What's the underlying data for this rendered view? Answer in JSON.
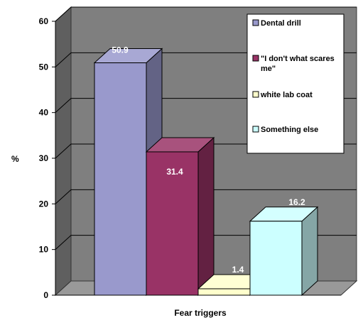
{
  "chart_data": {
    "type": "bar",
    "categories": [
      "Dental drill",
      "\"I don't what scares me\"",
      "white lab coat",
      "Something else"
    ],
    "values": [
      50.9,
      31.4,
      1.4,
      16.2
    ],
    "data_labels": [
      "50.9",
      "31.4",
      "1.4",
      "16.2"
    ],
    "colors": [
      "#9999cc",
      "#993366",
      "#ffffcc",
      "#ccffff"
    ],
    "title": "",
    "xlabel": "Fear triggers",
    "ylabel": "%",
    "ylim": [
      0,
      60
    ],
    "yticks": [
      0,
      10,
      20,
      30,
      40,
      50,
      60
    ],
    "ytick_labels": [
      "0",
      "10",
      "20",
      "30",
      "40",
      "50",
      "60"
    ],
    "grid": true,
    "legend_position": "top-right",
    "legend": [
      {
        "name": "Dental drill",
        "lines": [
          "Dental drill"
        ],
        "color": "#9999cc"
      },
      {
        "name": "\"I don't what scares me\"",
        "lines": [
          "\"I don't what scares",
          "me\""
        ],
        "color": "#993366"
      },
      {
        "name": "white lab coat",
        "lines": [
          "white lab coat"
        ],
        "color": "#ffffcc"
      },
      {
        "name": "Something else",
        "lines": [
          "Something else"
        ],
        "color": "#ccffff"
      }
    ],
    "plot_wall_color": "#7f7f7f",
    "plot_floor_color": "#999999"
  }
}
